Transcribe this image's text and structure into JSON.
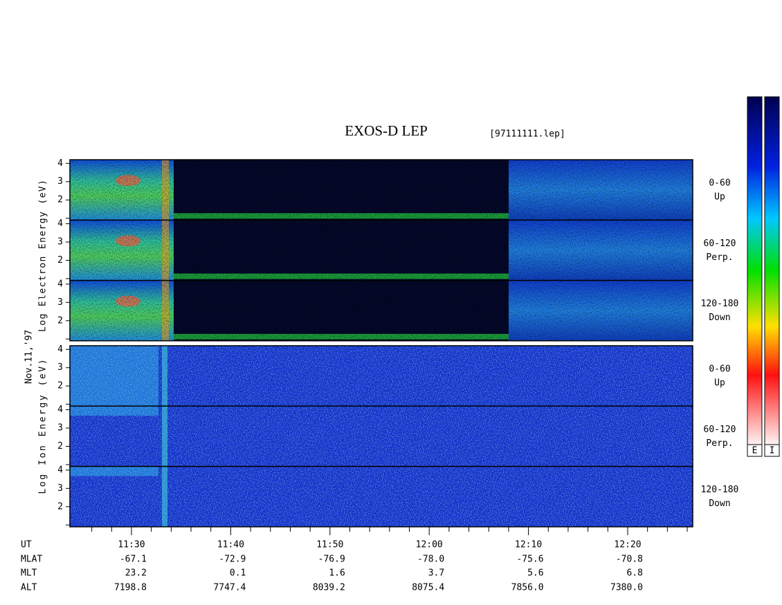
{
  "figure": {
    "title": "EXOS-D LEP",
    "file": "[97111111.lep]",
    "date": "Nov.11,'97",
    "ylim": [
      0.9,
      4.2
    ],
    "yticks": [
      2,
      3,
      4
    ],
    "minor_yticks": [
      1
    ],
    "groups": [
      {
        "axis_label": "Log Electron Energy (eV)",
        "panels": [
          {
            "angle": "0-60",
            "direction": "Up"
          },
          {
            "angle": "60-120",
            "direction": "Perp."
          },
          {
            "angle": "120-180",
            "direction": "Down"
          }
        ]
      },
      {
        "axis_label": "Log Ion Energy (eV)",
        "panels": [
          {
            "angle": "0-60",
            "direction": "Up"
          },
          {
            "angle": "60-120",
            "direction": "Perp."
          },
          {
            "angle": "120-180",
            "direction": "Down"
          }
        ]
      }
    ],
    "colorbars": [
      "E",
      "I"
    ],
    "ephemeris": [
      {
        "name": "UT",
        "values": [
          "11:30",
          "11:40",
          "11:50",
          "12:00",
          "12:10",
          "12:20"
        ]
      },
      {
        "name": "MLAT",
        "values": [
          "-67.1",
          "-72.9",
          "-76.9",
          "-78.0",
          "-75.6",
          "-70.8"
        ]
      },
      {
        "name": "MLT",
        "values": [
          "23.2",
          "0.1",
          "1.6",
          "3.7",
          "5.6",
          "6.8"
        ]
      },
      {
        "name": "ALT",
        "values": [
          "7198.8",
          "7747.4",
          "8039.2",
          "8075.4",
          "7856.0",
          "7380.0"
        ]
      }
    ]
  }
}
